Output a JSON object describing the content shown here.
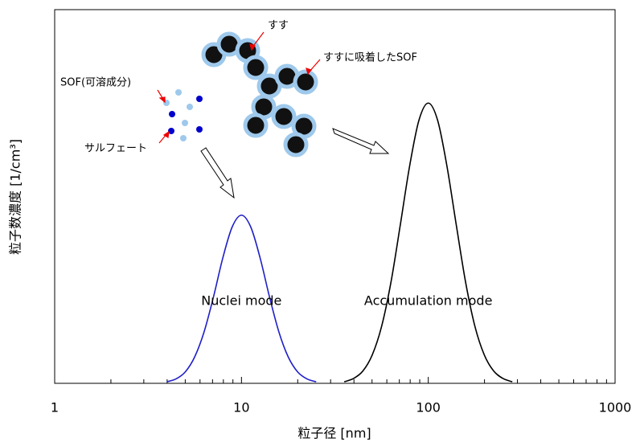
{
  "chart_data": {
    "type": "line",
    "xlabel": "粒子径 [nm]",
    "ylabel": "粒子数濃度 [1/cm³]",
    "xscale": "log",
    "xlim": [
      1,
      1000
    ],
    "ylim": [
      0,
      1
    ],
    "xticks": [
      1,
      10,
      100,
      1000
    ],
    "xminorticks": [
      2,
      3,
      4,
      5,
      6,
      7,
      8,
      9,
      20,
      30,
      40,
      50,
      60,
      70,
      80,
      90,
      200,
      300,
      400,
      500,
      600,
      700,
      800,
      900
    ],
    "series": [
      {
        "name": "Nuclei mode",
        "color": "#1f1fc8",
        "x": [
          3.98,
          4.47,
          5.01,
          5.62,
          6.31,
          7.08,
          7.94,
          8.91,
          10,
          11.22,
          12.59,
          14.13,
          15.85,
          17.78,
          19.95,
          22.39,
          25.12
        ],
        "values": [
          0.004,
          0.012,
          0.031,
          0.071,
          0.138,
          0.231,
          0.335,
          0.418,
          0.45,
          0.418,
          0.335,
          0.231,
          0.138,
          0.071,
          0.031,
          0.012,
          0.004
        ]
      },
      {
        "name": "Accumulation mode",
        "color": "#000000",
        "x": [
          35.48,
          39.81,
          44.67,
          50.12,
          56.23,
          63.1,
          70.79,
          79.43,
          89.13,
          100,
          112.2,
          125.9,
          141.3,
          158.5,
          177.8,
          199.5,
          223.9,
          251.2,
          281.8
        ],
        "values": [
          0.004,
          0.013,
          0.033,
          0.076,
          0.152,
          0.27,
          0.423,
          0.581,
          0.704,
          0.75,
          0.704,
          0.581,
          0.423,
          0.27,
          0.152,
          0.076,
          0.033,
          0.013,
          0.004
        ]
      }
    ],
    "annotations": [
      "すす",
      "すすに吸着したSOF",
      "SOF(可溶成分)",
      "サルフェート"
    ]
  }
}
